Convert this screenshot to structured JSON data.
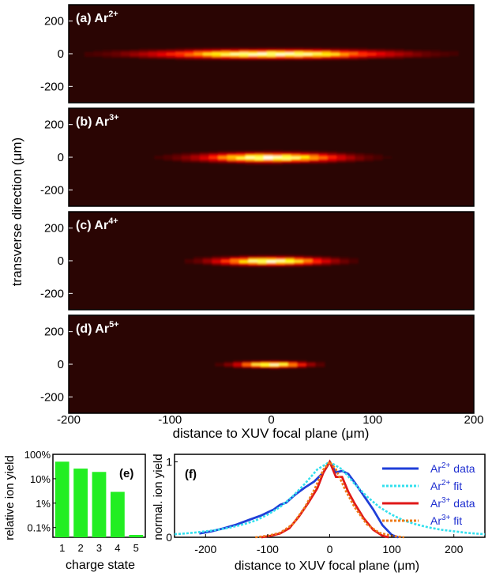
{
  "heatmaps": {
    "ylabel": "transverse direction (",
    "ylabel_unit": "μm",
    "ylabel_close": ")",
    "xlabel": "distance to XUV focal plane (",
    "xlabel_unit": "μm",
    "xlabel_close": ")",
    "x_ticks": [
      "-200",
      "-100",
      "0",
      "100",
      "200"
    ],
    "y_ticks": [
      "200",
      "0",
      "-200"
    ]
  },
  "panel_e": {
    "label": "(e)",
    "xlabel": "charge state",
    "ylabel": "relative ion yield",
    "y_ticks": [
      "100%",
      "10%",
      "1%",
      "0.1%"
    ],
    "x_ticks": [
      "1",
      "2",
      "3",
      "4",
      "5"
    ]
  },
  "panel_f": {
    "label": "(f)",
    "xlabel": "distance to XUV focal plane (",
    "xlabel_unit": "μm",
    "xlabel_close": ")",
    "ylabel": "normal. ion yield",
    "x_ticks": [
      "-200",
      "-100",
      "0",
      "100",
      "200"
    ],
    "y_ticks": [
      "0",
      "1"
    ],
    "legend": [
      {
        "base": "Ar",
        "sup": "2+",
        "suffix": " data",
        "color": "#1f3fd8",
        "dash": false
      },
      {
        "base": "Ar",
        "sup": "2+",
        "suffix": " fit",
        "color": "#33e0ee",
        "dash": true
      },
      {
        "base": "Ar",
        "sup": "3+",
        "suffix": " data",
        "color": "#e01818",
        "dash": false
      },
      {
        "base": "Ar",
        "sup": "3+",
        "suffix": " fit",
        "color": "#ee7a18",
        "dash": true
      }
    ]
  },
  "chart_data": [
    {
      "type": "heatmap",
      "panels": [
        {
          "label": "(a) Ar",
          "sup": "2+",
          "x_sigma": 75,
          "y_sigma": 16,
          "x_extent": 180
        },
        {
          "label": "(b) Ar",
          "sup": "3+",
          "x_sigma": 45,
          "y_sigma": 17,
          "x_extent": 120
        },
        {
          "label": "(c) Ar",
          "sup": "4+",
          "x_sigma": 35,
          "y_sigma": 15,
          "x_extent": 90
        },
        {
          "label": "(d) Ar",
          "sup": "5+",
          "x_sigma": 22,
          "y_sigma": 11,
          "x_extent": 60
        }
      ],
      "xlim": [
        -200,
        200
      ],
      "ylim": [
        -300,
        300
      ],
      "colormap": "hot"
    },
    {
      "type": "bar",
      "categories": [
        "1",
        "2",
        "3",
        "4",
        "5"
      ],
      "values": [
        0.5,
        0.26,
        0.19,
        0.029,
        0.0005
      ],
      "color": "#22ee22",
      "yscale": "log",
      "ylim": [
        0.0004,
        1
      ]
    },
    {
      "type": "line",
      "xlim": [
        -250,
        250
      ],
      "ylim": [
        0,
        1.1
      ],
      "series": [
        {
          "name": "Ar2+ data",
          "color": "#1f3fd8",
          "x": [
            -210,
            -190,
            -170,
            -150,
            -130,
            -110,
            -90,
            -80,
            -70,
            -55,
            -40,
            -25,
            -10,
            0,
            10,
            20,
            30,
            40,
            55,
            70,
            85,
            100,
            110
          ],
          "y": [
            0.05,
            0.08,
            0.12,
            0.17,
            0.23,
            0.29,
            0.37,
            0.43,
            0.46,
            0.57,
            0.66,
            0.74,
            0.86,
            1.0,
            0.86,
            0.88,
            0.84,
            0.73,
            0.55,
            0.37,
            0.16,
            0.03,
            0.0
          ]
        },
        {
          "name": "Ar2+ fit",
          "color": "#33e0ee",
          "dash": true,
          "x": [
            -250,
            -220,
            -200,
            -180,
            -160,
            -140,
            -120,
            -100,
            -80,
            -60,
            -40,
            -20,
            0,
            20,
            40,
            60,
            80,
            100,
            120,
            140,
            160,
            180,
            200,
            220,
            250
          ],
          "y": [
            0.04,
            0.06,
            0.08,
            0.1,
            0.13,
            0.17,
            0.22,
            0.3,
            0.4,
            0.54,
            0.71,
            0.9,
            1.0,
            0.9,
            0.71,
            0.54,
            0.4,
            0.3,
            0.22,
            0.17,
            0.13,
            0.1,
            0.08,
            0.06,
            0.04
          ]
        },
        {
          "name": "Ar3+ data",
          "color": "#e01818",
          "x": [
            -110,
            -95,
            -80,
            -65,
            -50,
            -35,
            -20,
            -10,
            0,
            10,
            20,
            30,
            40,
            55,
            70,
            85,
            95
          ],
          "y": [
            0.0,
            0.02,
            0.05,
            0.12,
            0.27,
            0.45,
            0.65,
            0.86,
            1.0,
            0.8,
            0.8,
            0.6,
            0.45,
            0.25,
            0.1,
            0.02,
            0.0
          ]
        },
        {
          "name": "Ar3+ fit",
          "color": "#ee7a18",
          "dash": true,
          "x": [
            -120,
            -100,
            -80,
            -60,
            -40,
            -25,
            -10,
            0,
            10,
            25,
            40,
            60,
            80,
            100,
            120
          ],
          "y": [
            0.0,
            0.02,
            0.06,
            0.17,
            0.4,
            0.63,
            0.9,
            1.0,
            0.9,
            0.63,
            0.4,
            0.17,
            0.06,
            0.02,
            0.0
          ]
        }
      ]
    }
  ]
}
